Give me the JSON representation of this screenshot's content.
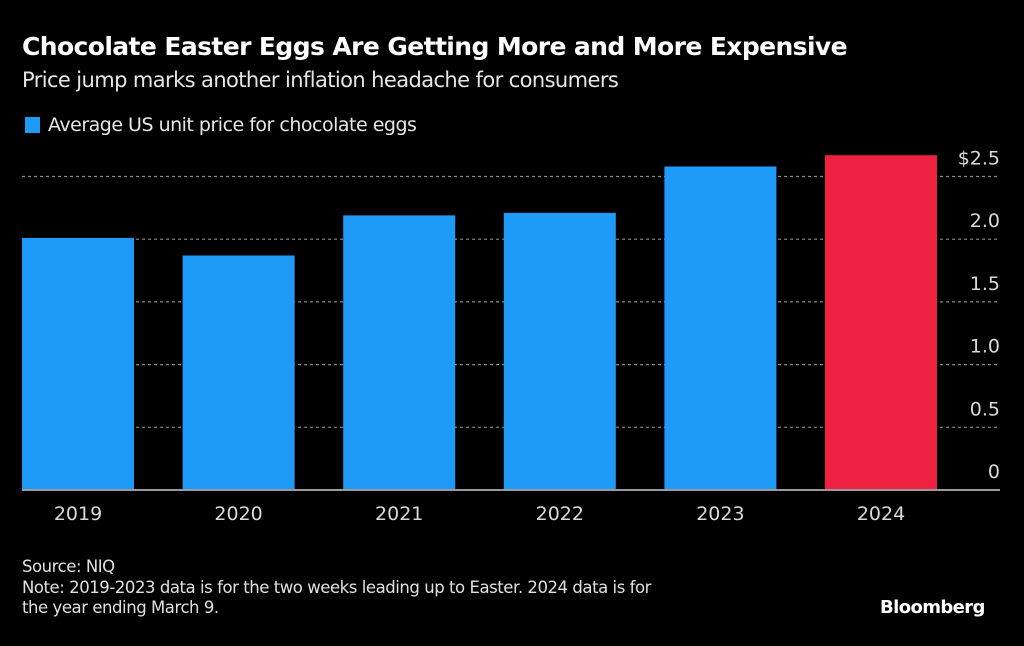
{
  "header": {
    "title": "Chocolate Easter Eggs Are Getting More and More Expensive",
    "subtitle": "Price jump marks another inflation headache for consumers"
  },
  "legend": {
    "items": [
      {
        "label": "Average US unit price for chocolate eggs",
        "color": "#1E9BF9"
      }
    ]
  },
  "footer": {
    "source": "Source: NIQ",
    "note_line1": "Note: 2019-2023 data is for the two weeks leading up to Easter. 2024 data is for",
    "note_line2": "the year ending March 9.",
    "brand": "Bloomberg"
  },
  "chart_data": {
    "type": "bar",
    "title": "Chocolate Easter Eggs Are Getting More and More Expensive",
    "subtitle": "Price jump marks another inflation headache for consumers",
    "xlabel": "",
    "ylabel": "",
    "categories": [
      "2019",
      "2020",
      "2021",
      "2022",
      "2023",
      "2024"
    ],
    "series": [
      {
        "name": "Average US unit price for chocolate eggs",
        "values": [
          2.01,
          1.87,
          2.19,
          2.21,
          2.58,
          2.67
        ]
      }
    ],
    "bar_colors": [
      "#1E9BF9",
      "#1E9BF9",
      "#1E9BF9",
      "#1E9BF9",
      "#1E9BF9",
      "#EE2143"
    ],
    "highlight_color": "#EE2143",
    "ylim": [
      0,
      2.67
    ],
    "yticks": [
      0,
      0.5,
      1.0,
      1.5,
      2.0,
      2.5
    ],
    "ytick_labels": [
      "0",
      "0.5",
      "1.0",
      "1.5",
      "2.0",
      "$2.5"
    ],
    "y_axis_side": "right",
    "grid": true,
    "grid_style": "dotted",
    "legend_position": "top-left"
  }
}
